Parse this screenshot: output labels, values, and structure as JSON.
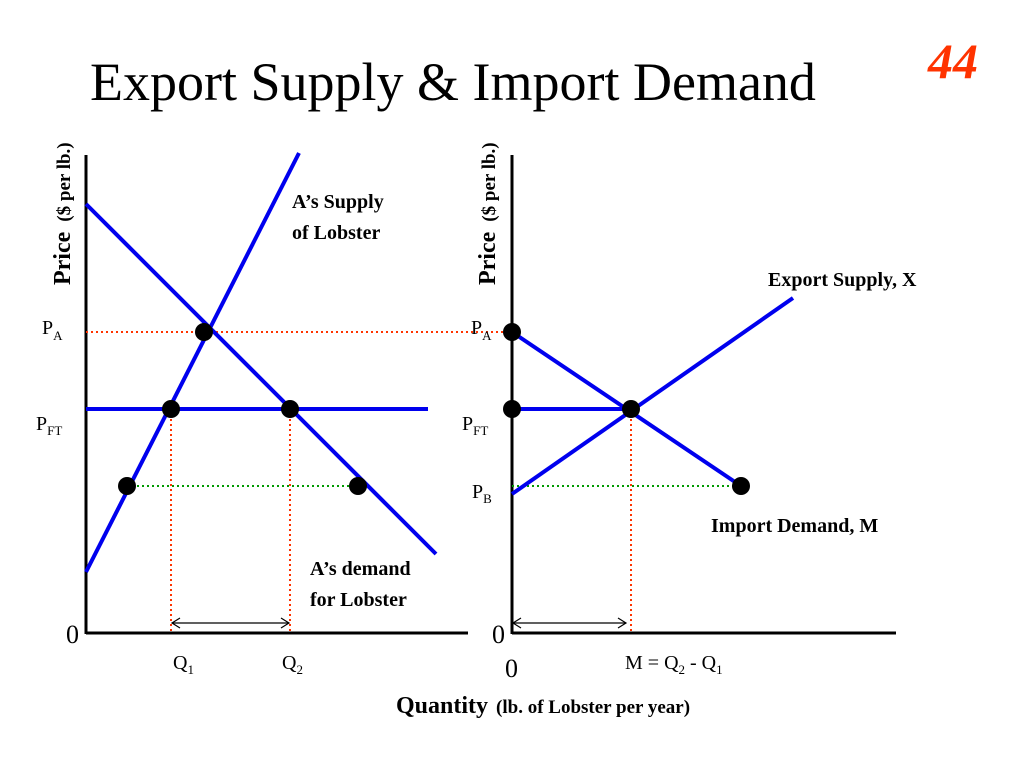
{
  "slide": {
    "title": "Export Supply & Import Demand",
    "slide_number": "44",
    "colors": {
      "curve": "#0000ee",
      "price_line": "#ff3300",
      "pb_line": "#009900",
      "qty_line": "#ff3300",
      "slide_number": "#ff3300"
    }
  },
  "left_panel": {
    "y_axis_label": {
      "main": "Price",
      "unit": "($ per lb.)"
    },
    "supply_label": [
      "A’s Supply",
      "of Lobster"
    ],
    "demand_label": [
      "A’s demand",
      "for Lobster"
    ],
    "price_labels": {
      "pa": "P",
      "pa_sub": "A",
      "pft": "P",
      "pft_sub": "FT"
    },
    "quantity_labels": {
      "q1": "Q",
      "q1_sub": "1",
      "q2": "Q",
      "q2_sub": "2"
    },
    "origin": "0"
  },
  "right_panel": {
    "y_axis_label": {
      "main": "Price",
      "unit": "($ per lb.)"
    },
    "export_supply_label": "Export Supply, X",
    "import_demand_label": "Import Demand, M",
    "price_labels": {
      "pa": "P",
      "pa_sub": "A",
      "pft": "P",
      "pft_sub": "FT",
      "pb": "P",
      "pb_sub": "B"
    },
    "m_label": {
      "prefix": "M = Q",
      "sub1": "2",
      "mid": " - Q",
      "sub2": "1"
    },
    "origin_top": "0",
    "origin_bottom": "0"
  },
  "x_axis_label": {
    "main": "Quantity",
    "unit": "(lb. of Lobster per year)"
  }
}
